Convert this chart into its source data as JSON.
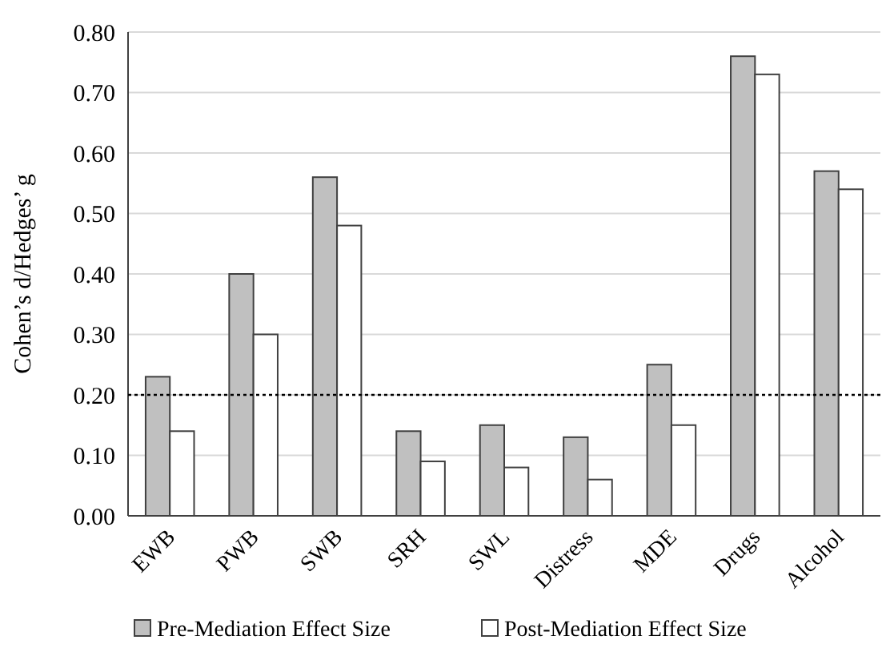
{
  "chart_data": {
    "type": "bar",
    "ylabel": "Cohen’s d/Hedges’ g",
    "categories": [
      "EWB",
      "PWB",
      "SWB",
      "SRH",
      "SWL",
      "Distress",
      "MDE",
      "Drugs",
      "Alcohol"
    ],
    "series": [
      {
        "name": "Pre-Mediation Effect Size",
        "color": "#c0c0c0",
        "values": [
          0.23,
          0.4,
          0.56,
          0.14,
          0.15,
          0.13,
          0.25,
          0.76,
          0.57
        ]
      },
      {
        "name": "Post-Mediation Effect Size",
        "color": "#ffffff",
        "values": [
          0.14,
          0.3,
          0.48,
          0.09,
          0.08,
          0.06,
          0.15,
          0.73,
          0.54
        ]
      }
    ],
    "ylim": [
      0,
      0.8
    ],
    "yticks": [
      {
        "value": 0,
        "label": "0.00"
      },
      {
        "value": 0.1,
        "label": "0.10"
      },
      {
        "value": 0.2,
        "label": "0.20"
      },
      {
        "value": 0.3,
        "label": "0.30"
      },
      {
        "value": 0.4,
        "label": "0.40"
      },
      {
        "value": 0.5,
        "label": "0.50"
      },
      {
        "value": 0.6,
        "label": "0.60"
      },
      {
        "value": 0.7,
        "label": "0.70"
      },
      {
        "value": 0.8,
        "label": "0.80"
      }
    ],
    "ref_lines": [
      {
        "axis": "y",
        "value": 0.2,
        "line_style": "dotted",
        "color": "#000000"
      }
    ],
    "grid": "y",
    "legend": "bottom"
  }
}
